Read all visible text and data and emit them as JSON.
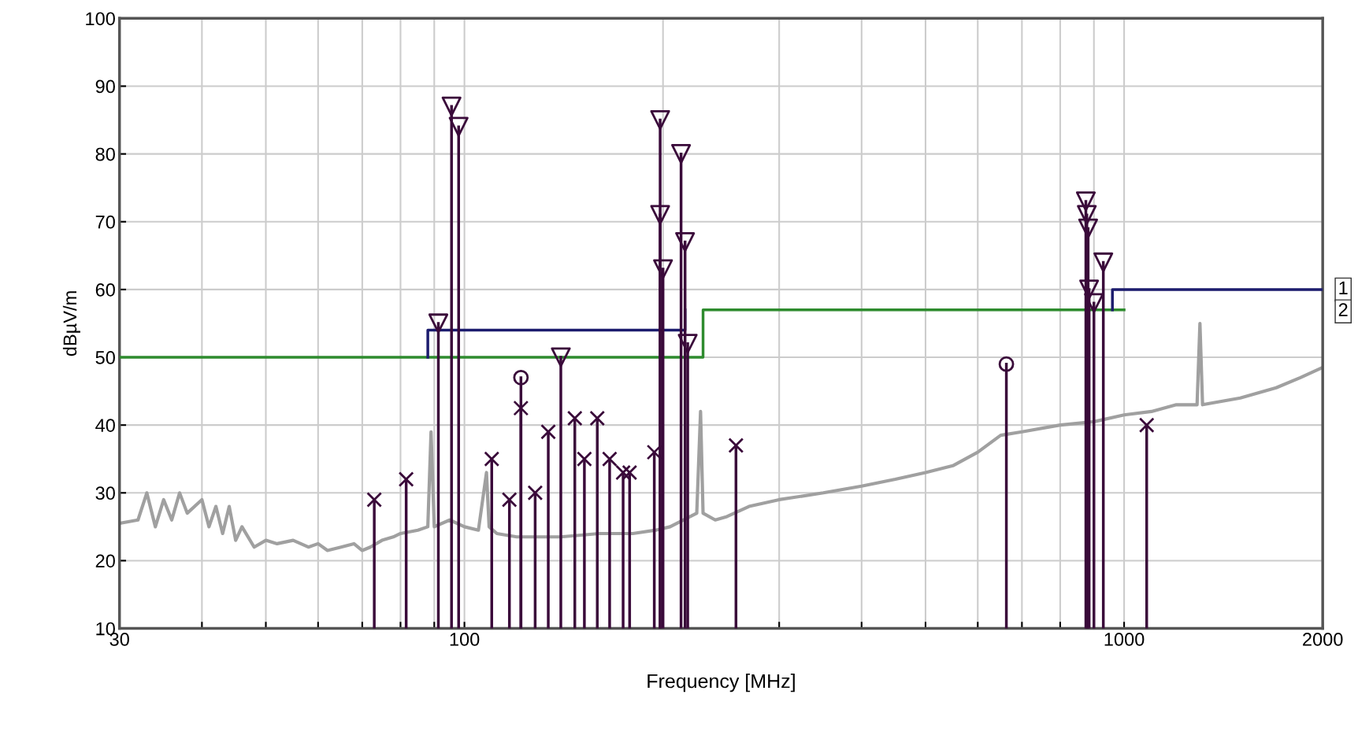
{
  "chart_data": {
    "type": "line",
    "xlabel": "Frequency [MHz]",
    "ylabel": "dBµV/m",
    "log": "x",
    "grid": true,
    "xlim": [
      30,
      2000
    ],
    "ylim": [
      10,
      100
    ],
    "xticks": [
      30,
      {
        "value": 40,
        "label": null
      },
      {
        "value": 50,
        "label": null
      },
      {
        "value": 60,
        "label": null
      },
      {
        "value": 70,
        "label": null
      },
      {
        "value": 80,
        "label": null
      },
      {
        "value": 90,
        "label": null
      },
      100,
      {
        "value": 200,
        "label": null
      },
      {
        "value": 300,
        "label": null
      },
      {
        "value": 400,
        "label": null
      },
      {
        "value": 500,
        "label": null
      },
      {
        "value": 600,
        "label": null
      },
      {
        "value": 700,
        "label": null
      },
      {
        "value": 800,
        "label": null
      },
      {
        "value": 900,
        "label": null
      },
      1000,
      2000
    ],
    "yticks": [
      10,
      20,
      30,
      40,
      50,
      60,
      70,
      80,
      90,
      100
    ],
    "series": [
      {
        "color": "#a0a0a0",
        "x": [
          30,
          32,
          33,
          34,
          35,
          36,
          37,
          38,
          40,
          41,
          42,
          43,
          44,
          45,
          46,
          48,
          50,
          52,
          55,
          58,
          60,
          62,
          65,
          68,
          70,
          72,
          75,
          78,
          80,
          85,
          88,
          89,
          90,
          95,
          100,
          105,
          108,
          109,
          112,
          120,
          140,
          160,
          180,
          195,
          205,
          225,
          228,
          230,
          240,
          250,
          270,
          300,
          350,
          400,
          450,
          500,
          550,
          600,
          650,
          700,
          800,
          900,
          1000,
          1100,
          1200,
          1290,
          1303,
          1315,
          1500,
          1700,
          1850,
          2000
        ],
        "values": [
          25.5,
          26,
          30,
          25,
          29,
          26,
          30,
          27,
          29,
          25,
          28,
          24,
          28,
          23,
          25,
          22,
          23,
          22.5,
          23,
          22,
          22.5,
          21.5,
          22,
          22.5,
          21.5,
          22,
          23,
          23.5,
          24,
          24.5,
          25,
          39,
          25,
          26,
          25,
          24.5,
          33,
          25,
          24,
          23.5,
          23.5,
          24,
          24,
          24.5,
          25,
          27,
          42,
          27,
          26,
          26.5,
          28,
          29,
          30,
          31,
          32,
          33,
          34,
          36,
          38.5,
          39,
          40,
          40.5,
          41.5,
          42,
          43,
          43,
          55,
          43,
          44,
          45.5,
          47,
          48.5
        ]
      },
      {
        "color": "#2e8b2e",
        "x": [
          30,
          230,
          230,
          1000
        ],
        "values": [
          50,
          50,
          57,
          57
        ]
      },
      {
        "color": "#1c1c6e",
        "x": [
          88,
          88,
          216,
          216,
          600,
          960,
          960,
          2000
        ],
        "values": [
          50,
          54,
          54,
          57,
          null,
          57,
          60,
          60
        ]
      },
      {
        "type": "lollipop",
        "marker": "triangle",
        "color": "#3a0a3a",
        "x": [
          91.3,
          95.6,
          98,
          140,
          198,
          198,
          200,
          213,
          216,
          218,
          875,
          878,
          882,
          885,
          900,
          930
        ],
        "values": [
          55,
          87,
          84,
          50,
          85,
          71,
          63,
          80,
          67,
          52,
          73,
          71,
          69,
          60,
          58,
          64
        ]
      },
      {
        "type": "lollipop",
        "marker": "cross",
        "color": "#3a0a3a",
        "x": [
          73,
          81.6,
          110,
          117,
          121.8,
          128,
          134,
          147,
          152,
          159,
          166,
          174,
          178,
          194,
          258,
          1082
        ],
        "values": [
          29,
          32,
          35,
          29,
          42.5,
          30,
          39,
          41,
          35,
          41,
          35,
          33,
          33,
          36,
          37,
          40
        ]
      },
      {
        "type": "lollipop",
        "marker": "circle",
        "color": "#3a0a3a",
        "x": [
          121.8,
          663
        ],
        "values": [
          47,
          49
        ]
      }
    ],
    "annotations": [
      {
        "text": "1",
        "x": 2000,
        "y": 60
      },
      "2"
    ]
  }
}
